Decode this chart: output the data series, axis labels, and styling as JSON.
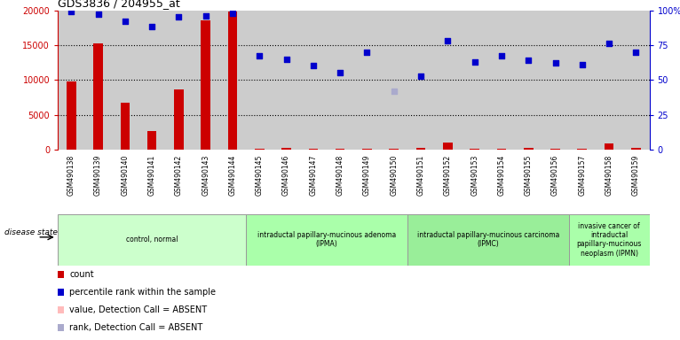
{
  "title": "GDS3836 / 204955_at",
  "samples": [
    "GSM490138",
    "GSM490139",
    "GSM490140",
    "GSM490141",
    "GSM490142",
    "GSM490143",
    "GSM490144",
    "GSM490145",
    "GSM490146",
    "GSM490147",
    "GSM490148",
    "GSM490149",
    "GSM490150",
    "GSM490151",
    "GSM490152",
    "GSM490153",
    "GSM490154",
    "GSM490155",
    "GSM490156",
    "GSM490157",
    "GSM490158",
    "GSM490159"
  ],
  "counts": [
    9800,
    15200,
    6700,
    2700,
    8600,
    18500,
    19800,
    120,
    200,
    150,
    180,
    160,
    130,
    300,
    1000,
    180,
    150,
    200,
    170,
    180,
    900,
    200
  ],
  "percentile_ranks": [
    99,
    97,
    92,
    88,
    95,
    96,
    98,
    67,
    65,
    60,
    55,
    70,
    null,
    53,
    78,
    63,
    67,
    64,
    62,
    61,
    76,
    70
  ],
  "absent_ranks": [
    null,
    null,
    null,
    null,
    null,
    null,
    null,
    null,
    null,
    null,
    null,
    null,
    42,
    null,
    null,
    null,
    null,
    null,
    null,
    null,
    null,
    null
  ],
  "absent_value_idx": [
    null,
    null,
    null,
    null,
    null,
    null,
    null,
    null,
    null,
    null,
    null,
    null,
    null,
    null,
    null,
    null,
    null,
    null,
    null,
    null,
    null,
    null
  ],
  "absent_value_count_idx": 21,
  "left_ylim": [
    0,
    20000
  ],
  "right_ylim": [
    0,
    100
  ],
  "left_yticks": [
    0,
    5000,
    10000,
    15000,
    20000
  ],
  "right_yticks": [
    0,
    25,
    50,
    75,
    100
  ],
  "right_yticklabels": [
    "0",
    "25",
    "50",
    "75",
    "100%"
  ],
  "groups": [
    {
      "label": "control, normal",
      "start": 0,
      "end": 7,
      "color": "#ccffcc"
    },
    {
      "label": "intraductal papillary-mucinous adenoma\n(IPMA)",
      "start": 7,
      "end": 13,
      "color": "#aaffaa"
    },
    {
      "label": "intraductal papillary-mucinous carcinoma\n(IPMC)",
      "start": 13,
      "end": 19,
      "color": "#99ee99"
    },
    {
      "label": "invasive cancer of\nintraductal\npapillary-mucinous\nneoplasm (IPMN)",
      "start": 19,
      "end": 22,
      "color": "#aaffaa"
    }
  ],
  "bar_color": "#cc0000",
  "dot_color": "#0000cc",
  "absent_bar_color": "#ffbbbb",
  "absent_dot_color": "#aaaacc",
  "column_bg": "#cccccc",
  "plot_bg": "#ffffff",
  "gridline_color": "#000000",
  "disease_state_label": "disease state",
  "legend_items": [
    {
      "color": "#cc0000",
      "label": "count"
    },
    {
      "color": "#0000cc",
      "label": "percentile rank within the sample"
    },
    {
      "color": "#ffbbbb",
      "label": "value, Detection Call = ABSENT"
    },
    {
      "color": "#aaaacc",
      "label": "rank, Detection Call = ABSENT"
    }
  ]
}
